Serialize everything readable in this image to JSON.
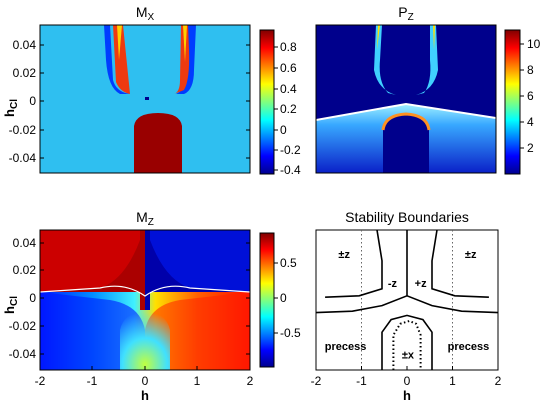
{
  "chart_data": [
    {
      "type": "heatmap",
      "title": "M",
      "title_sub": "X",
      "ylabel": "h",
      "ylabel_sub": "Cl",
      "xlabel": "",
      "xlim": [
        -2,
        2
      ],
      "ylim": [
        -0.05,
        0.05
      ],
      "xticks": [],
      "yticks": [
        0.04,
        0.02,
        0,
        -0.02,
        -0.04
      ],
      "yticklabels": [
        "0.04",
        "0.02",
        "0",
        "-0.02",
        "-0.04"
      ],
      "colorbar": {
        "ticks": [
          0.8,
          0.6,
          0.4,
          0.2,
          0,
          -0.2,
          -0.4
        ],
        "ticklabels": [
          "0.8",
          "0.6",
          "0.4",
          "0.2",
          "0",
          "-0.2",
          "-0.4"
        ],
        "range": [
          -0.45,
          0.95
        ]
      },
      "regions": [
        {
          "name": "background",
          "value": 0.05,
          "color": "#2fbff0"
        },
        {
          "name": "upper-left-lobe",
          "value": 0.7,
          "color": "#ee3a10"
        },
        {
          "name": "upper-right-lobe",
          "value": 0.7,
          "color": "#ee3a10"
        },
        {
          "name": "lower-dome",
          "value": 0.95,
          "color": "#990000"
        }
      ]
    },
    {
      "type": "heatmap",
      "title": "P",
      "title_sub": "Z",
      "xlabel": "",
      "ylabel": "",
      "xlim": [
        -2,
        2
      ],
      "ylim": [
        -0.05,
        0.05
      ],
      "colorbar": {
        "ticks": [
          10,
          8,
          6,
          4,
          2
        ],
        "ticklabels": [
          "10",
          "8",
          "6",
          "4",
          "2"
        ],
        "range": [
          0,
          11
        ]
      },
      "regions": [
        {
          "name": "background",
          "value": 0.5,
          "color": "#00008c"
        },
        {
          "name": "upper-bands",
          "value": 6,
          "color": "#40d0ff"
        },
        {
          "name": "lower-fan",
          "value": 3,
          "color": "#2b8bff"
        },
        {
          "name": "dome-edge",
          "value": 9,
          "color": "#ff9020"
        }
      ]
    },
    {
      "type": "heatmap",
      "title": "M",
      "title_sub": "Z",
      "xlabel": "h",
      "ylabel": "h",
      "ylabel_sub": "Cl",
      "xlim": [
        -2,
        2
      ],
      "ylim": [
        -0.05,
        0.05
      ],
      "xticks": [
        -2,
        -1,
        0,
        1,
        2
      ],
      "xticklabels": [
        "-2",
        "-1",
        "0",
        "1",
        "2"
      ],
      "yticks": [
        0.04,
        0.02,
        0,
        -0.02,
        -0.04
      ],
      "yticklabels": [
        "0.04",
        "0.02",
        "0",
        "-0.02",
        "-0.04"
      ],
      "colorbar": {
        "ticks": [
          0.5,
          0,
          -0.5
        ],
        "ticklabels": [
          "0.5",
          "0",
          "-0.5"
        ],
        "range": [
          -0.9,
          0.9
        ]
      },
      "regions": [
        {
          "name": "upper-left",
          "value": 0.85,
          "color": "#aa0000"
        },
        {
          "name": "upper-right",
          "value": -0.85,
          "color": "#0000aa"
        },
        {
          "name": "lower-gradient",
          "value": 0,
          "color": "#40e0ff"
        }
      ]
    },
    {
      "type": "line",
      "title": "Stability Boundaries",
      "xlabel": "h",
      "ylabel": "",
      "xlim": [
        -2,
        2
      ],
      "ylim": [
        -0.05,
        0.05
      ],
      "xticks": [
        -2,
        -1,
        0,
        1,
        2
      ],
      "xticklabels": [
        "-2",
        "-1",
        "0",
        "1",
        "2"
      ],
      "annotations": [
        {
          "text": "±z",
          "x": -1.38,
          "y": 0.033
        },
        {
          "text": "-z",
          "x": -0.32,
          "y": 0.012
        },
        {
          "text": "+z",
          "x": 0.3,
          "y": 0.012
        },
        {
          "text": "±z",
          "x": 1.4,
          "y": 0.033
        },
        {
          "text": "precess",
          "x": -1.35,
          "y": -0.033
        },
        {
          "text": "±x",
          "x": 0.02,
          "y": -0.039
        },
        {
          "text": "precess",
          "x": 1.35,
          "y": -0.033
        }
      ],
      "vlines_dotted": [
        -1,
        1
      ],
      "series": [
        {
          "values": [
            [
              -1.8,
              0.002
            ],
            [
              -1.05,
              0.003
            ],
            [
              -0.55,
              0.008
            ],
            [
              -0.55,
              0.028
            ],
            [
              -0.66,
              0.05
            ]
          ]
        },
        {
          "values": [
            [
              1.8,
              0.002
            ],
            [
              1.05,
              0.003
            ],
            [
              0.55,
              0.008
            ],
            [
              0.55,
              0.028
            ],
            [
              0.66,
              0.05
            ]
          ]
        },
        {
          "values": [
            [
              0,
              0.05
            ],
            [
              0,
              0.003
            ]
          ]
        },
        {
          "values": [
            [
              -2,
              -0.009
            ],
            [
              -1.2,
              -0.008
            ],
            [
              -0.55,
              -0.004
            ],
            [
              0,
              0.003
            ],
            [
              0.55,
              -0.004
            ],
            [
              1.2,
              -0.008
            ],
            [
              2,
              -0.009
            ]
          ]
        },
        {
          "values": [
            [
              -0.55,
              -0.05
            ],
            [
              -0.55,
              -0.023
            ],
            [
              -0.35,
              -0.014
            ],
            [
              0,
              -0.011
            ],
            [
              0.35,
              -0.014
            ],
            [
              0.55,
              -0.023
            ],
            [
              0.55,
              -0.05
            ]
          ]
        },
        {
          "values": [
            [
              -0.3,
              -0.05
            ],
            [
              -0.3,
              -0.025
            ],
            [
              -0.15,
              -0.017
            ],
            [
              0.05,
              -0.015
            ],
            [
              0.2,
              -0.017
            ],
            [
              0.3,
              -0.025
            ],
            [
              0.3,
              -0.05
            ]
          ],
          "style": "dotted"
        }
      ]
    }
  ]
}
